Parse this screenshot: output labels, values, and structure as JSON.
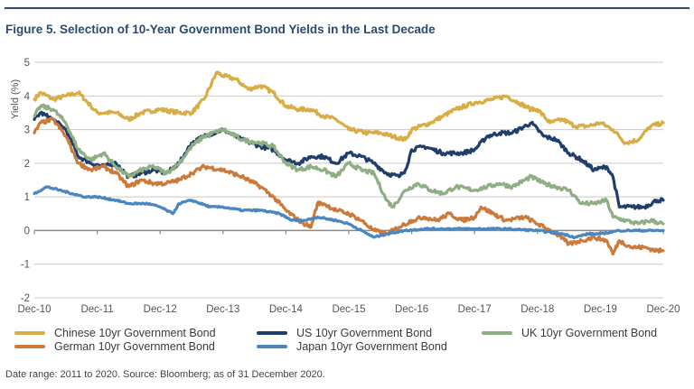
{
  "figure": {
    "title": "Figure 5. Selection of 10-Year Government Bond Yields in the Last Decade",
    "source": "Date range: 2011 to 2020. Source: Bloomberg; as of 31 December 2020."
  },
  "chart_data": {
    "type": "line",
    "title": "Figure 5. Selection of 10-Year Government Bond Yields in the Last Decade",
    "xlabel": "",
    "ylabel": "Yield (%)",
    "x_unit": "years since Dec-10",
    "xlim": [
      0,
      10
    ],
    "ylim": [
      -2,
      5
    ],
    "yticks": [
      5,
      4,
      3,
      2,
      1,
      0,
      -1,
      -2
    ],
    "ytick_labels": [
      "5",
      "4",
      "3",
      "2",
      "1",
      "0",
      "-1",
      "-2"
    ],
    "xticks": [
      0,
      1,
      2,
      3,
      4,
      5,
      6,
      7,
      8,
      9,
      10
    ],
    "xtick_labels": [
      "Dec-10",
      "Dec-11",
      "Dec-12",
      "Dec-13",
      "Dec-14",
      "Dec-15",
      "Dec-16",
      "Dec-17",
      "Dec-18",
      "Dec-19",
      "Dec-20"
    ],
    "grid": true,
    "legend_position": "bottom",
    "series": [
      {
        "name": "Chinese 10yr Government Bond",
        "color": "#d9ad45",
        "x": [
          0,
          0.1,
          0.3,
          0.5,
          0.7,
          0.9,
          1.0,
          1.3,
          1.5,
          1.7,
          2.0,
          2.3,
          2.5,
          2.7,
          2.9,
          3.0,
          3.2,
          3.4,
          3.6,
          3.8,
          4.0,
          4.2,
          4.4,
          4.6,
          4.8,
          5.0,
          5.3,
          5.5,
          5.7,
          5.9,
          6.0,
          6.3,
          6.5,
          6.7,
          7.0,
          7.3,
          7.5,
          7.7,
          7.9,
          8.0,
          8.2,
          8.4,
          8.6,
          8.8,
          9.0,
          9.2,
          9.4,
          9.6,
          9.8,
          10.0
        ],
        "values": [
          3.9,
          4.1,
          3.9,
          4.0,
          4.1,
          3.7,
          3.5,
          3.5,
          3.3,
          3.5,
          3.6,
          3.5,
          3.5,
          3.9,
          4.7,
          4.6,
          4.5,
          4.2,
          4.3,
          4.1,
          3.7,
          3.6,
          3.6,
          3.4,
          3.3,
          3.0,
          2.9,
          2.9,
          2.8,
          2.7,
          3.0,
          3.2,
          3.4,
          3.6,
          3.8,
          3.9,
          4.0,
          3.8,
          3.6,
          3.6,
          3.2,
          3.3,
          3.1,
          3.1,
          3.2,
          3.0,
          2.6,
          2.7,
          3.1,
          3.2
        ]
      },
      {
        "name": "US 10yr Government Bond",
        "color": "#1f3e6b",
        "x": [
          0,
          0.1,
          0.3,
          0.5,
          0.7,
          0.9,
          1.1,
          1.3,
          1.5,
          1.7,
          1.9,
          2.1,
          2.3,
          2.5,
          2.7,
          3.0,
          3.3,
          3.6,
          3.8,
          4.0,
          4.2,
          4.4,
          4.6,
          4.8,
          5.0,
          5.2,
          5.4,
          5.6,
          5.8,
          5.9,
          6.0,
          6.2,
          6.5,
          6.8,
          7.0,
          7.2,
          7.4,
          7.6,
          7.9,
          8.1,
          8.3,
          8.5,
          8.7,
          8.9,
          9.1,
          9.2,
          9.3,
          9.5,
          9.7,
          9.9,
          10.0
        ],
        "values": [
          3.3,
          3.5,
          3.3,
          3.0,
          2.2,
          2.0,
          1.9,
          2.0,
          1.6,
          1.7,
          1.8,
          1.7,
          2.0,
          2.6,
          2.8,
          3.0,
          2.7,
          2.5,
          2.4,
          2.1,
          2.0,
          2.2,
          2.2,
          2.0,
          2.3,
          2.2,
          2.0,
          1.7,
          1.6,
          1.8,
          2.4,
          2.5,
          2.3,
          2.3,
          2.4,
          2.8,
          2.9,
          2.9,
          3.2,
          2.8,
          2.7,
          2.3,
          2.1,
          1.8,
          1.9,
          1.6,
          0.7,
          0.7,
          0.7,
          0.9,
          0.9
        ]
      },
      {
        "name": "UK 10yr Government Bond",
        "color": "#8fae84",
        "x": [
          0,
          0.1,
          0.3,
          0.5,
          0.7,
          0.9,
          1.1,
          1.3,
          1.5,
          1.7,
          1.9,
          2.1,
          2.3,
          2.5,
          2.7,
          3.0,
          3.3,
          3.6,
          3.8,
          4.0,
          4.2,
          4.4,
          4.6,
          4.8,
          5.0,
          5.2,
          5.4,
          5.6,
          5.7,
          5.9,
          6.1,
          6.3,
          6.5,
          6.7,
          7.0,
          7.2,
          7.4,
          7.6,
          7.9,
          8.1,
          8.3,
          8.5,
          8.7,
          8.9,
          9.1,
          9.2,
          9.4,
          9.6,
          9.8,
          10.0
        ],
        "values": [
          3.4,
          3.7,
          3.6,
          3.2,
          2.4,
          2.1,
          2.3,
          1.9,
          1.6,
          1.8,
          1.9,
          1.7,
          2.0,
          2.5,
          2.8,
          3.0,
          2.7,
          2.6,
          2.5,
          2.0,
          1.8,
          1.9,
          1.8,
          1.6,
          2.0,
          1.8,
          1.7,
          0.9,
          0.7,
          1.2,
          1.4,
          1.2,
          1.1,
          1.3,
          1.2,
          1.3,
          1.4,
          1.3,
          1.6,
          1.4,
          1.3,
          1.2,
          0.8,
          0.8,
          0.9,
          0.4,
          0.3,
          0.2,
          0.3,
          0.2
        ]
      },
      {
        "name": "German 10yr Government Bond",
        "color": "#cc7a3c",
        "x": [
          0,
          0.1,
          0.3,
          0.5,
          0.7,
          0.9,
          1.1,
          1.3,
          1.5,
          1.7,
          1.9,
          2.1,
          2.3,
          2.5,
          2.7,
          3.0,
          3.3,
          3.6,
          3.8,
          4.0,
          4.2,
          4.4,
          4.5,
          4.6,
          4.8,
          5.0,
          5.2,
          5.4,
          5.6,
          5.8,
          6.0,
          6.2,
          6.4,
          6.6,
          6.8,
          7.0,
          7.1,
          7.3,
          7.5,
          7.8,
          8.0,
          8.3,
          8.5,
          8.7,
          8.9,
          9.1,
          9.2,
          9.3,
          9.5,
          9.7,
          9.9,
          10.0
        ],
        "values": [
          2.9,
          3.2,
          3.3,
          2.8,
          2.0,
          1.8,
          1.9,
          1.7,
          1.3,
          1.5,
          1.4,
          1.4,
          1.5,
          1.7,
          1.9,
          1.8,
          1.6,
          1.3,
          1.0,
          0.6,
          0.3,
          0.1,
          0.8,
          0.8,
          0.6,
          0.5,
          0.3,
          0.0,
          -0.1,
          0.1,
          0.3,
          0.4,
          0.3,
          0.5,
          0.3,
          0.4,
          0.7,
          0.5,
          0.3,
          0.4,
          0.2,
          -0.1,
          -0.4,
          -0.3,
          -0.2,
          -0.3,
          -0.7,
          -0.3,
          -0.5,
          -0.5,
          -0.6,
          -0.6
        ]
      },
      {
        "name": "Japan 10yr Government Bond",
        "color": "#4a86c0",
        "x": [
          0,
          0.2,
          0.4,
          0.6,
          0.8,
          1.0,
          1.3,
          1.5,
          1.8,
          2.0,
          2.2,
          2.3,
          2.5,
          2.8,
          3.0,
          3.3,
          3.6,
          3.9,
          4.1,
          4.3,
          4.5,
          4.8,
          5.0,
          5.2,
          5.4,
          5.6,
          5.9,
          6.2,
          6.5,
          7.0,
          7.5,
          8.0,
          8.4,
          8.6,
          8.8,
          9.0,
          9.3,
          9.6,
          10.0
        ],
        "values": [
          1.1,
          1.3,
          1.2,
          1.1,
          1.0,
          1.0,
          0.9,
          0.8,
          0.8,
          0.7,
          0.5,
          0.8,
          0.9,
          0.7,
          0.7,
          0.6,
          0.6,
          0.5,
          0.3,
          0.3,
          0.4,
          0.3,
          0.2,
          0.0,
          -0.2,
          -0.1,
          0.0,
          0.05,
          0.05,
          0.05,
          0.05,
          0.0,
          -0.1,
          -0.2,
          -0.1,
          -0.1,
          0.0,
          0.0,
          0.0
        ]
      }
    ]
  },
  "legend": [
    {
      "label": "Chinese 10yr Government Bond",
      "color": "#d9ad45"
    },
    {
      "label": "US 10yr Government Bond",
      "color": "#1f3e6b"
    },
    {
      "label": "UK 10yr Government Bond",
      "color": "#8fae84"
    },
    {
      "label": "German 10yr Government Bond",
      "color": "#cc7a3c"
    },
    {
      "label": "Japan 10yr Government Bond",
      "color": "#4a86c0"
    }
  ]
}
